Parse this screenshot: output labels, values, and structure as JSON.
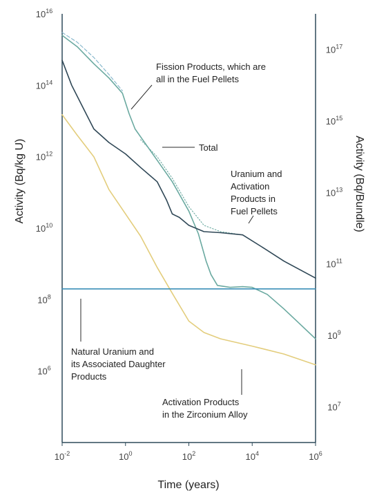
{
  "chart_data": {
    "type": "line",
    "xlabel": "Time (years)",
    "ylabel_left": "Activity (Bq/kg U)",
    "ylabel_right": "Activity (Bq/Bundle)",
    "xscale": "log",
    "yscale": "log",
    "xlim": [
      0.01,
      1000000
    ],
    "ylim_left": [
      10000,
      10000000000000000
    ],
    "ylim_right": [
      1000000,
      1000000000000000000
    ],
    "x_ticks": [
      {
        "value": 0.01,
        "base": "10",
        "exp": "-2"
      },
      {
        "value": 1,
        "base": "10",
        "exp": "0"
      },
      {
        "value": 100,
        "base": "10",
        "exp": "2"
      },
      {
        "value": 10000,
        "base": "10",
        "exp": "4"
      },
      {
        "value": 1000000,
        "base": "10",
        "exp": "6"
      }
    ],
    "y_left_ticks": [
      {
        "value": 1000000,
        "base": "10",
        "exp": "6"
      },
      {
        "value": 100000000,
        "base": "10",
        "exp": "8"
      },
      {
        "value": 10000000000,
        "base": "10",
        "exp": "10"
      },
      {
        "value": 1000000000000,
        "base": "10",
        "exp": "12"
      },
      {
        "value": 100000000000000,
        "base": "10",
        "exp": "14"
      },
      {
        "value": 10000000000000000,
        "base": "10",
        "exp": "16"
      }
    ],
    "y_right_ticks": [
      {
        "value": 10000000,
        "base": "10",
        "exp": "7"
      },
      {
        "value": 1000000000,
        "base": "10",
        "exp": "9"
      },
      {
        "value": 100000000000,
        "base": "10",
        "exp": "11"
      },
      {
        "value": 10000000000000,
        "base": "10",
        "exp": "13"
      },
      {
        "value": 1000000000000000,
        "base": "10",
        "exp": "15"
      },
      {
        "value": 100000000000000000,
        "base": "10",
        "exp": "17"
      }
    ],
    "series": [
      {
        "name": "Fission Products, which are all in the Fuel Pellets",
        "color": "#6aa9a0",
        "style": "solid",
        "points": [
          [
            0.01,
            2500000000000000.0
          ],
          [
            0.03,
            1200000000000000.0
          ],
          [
            0.1,
            400000000000000.0
          ],
          [
            0.3,
            160000000000000.0
          ],
          [
            0.8,
            60000000000000.0
          ],
          [
            1.3,
            16000000000000.0
          ],
          [
            2,
            6000000000000.0
          ],
          [
            4,
            2500000000000.0
          ],
          [
            10,
            800000000000.0
          ],
          [
            30,
            200000000000.0
          ],
          [
            100,
            30000000000.0
          ],
          [
            200,
            7000000000.0
          ],
          [
            350,
            1200000000.0
          ],
          [
            500,
            500000000.0
          ],
          [
            800,
            250000000.0
          ],
          [
            2000,
            220000000.0
          ],
          [
            5000,
            230000000.0
          ],
          [
            10000,
            220000000.0
          ],
          [
            30000,
            140000000.0
          ],
          [
            100000,
            55000000.0
          ],
          [
            300000,
            22000000.0
          ],
          [
            1000000,
            8000000.0
          ]
        ]
      },
      {
        "name": "Total",
        "color": "#6aa9a0",
        "style": "dotted",
        "points": [
          [
            3,
            3000000000000.0
          ],
          [
            10,
            1000000000000.0
          ],
          [
            30,
            250000000000.0
          ],
          [
            100,
            40000000000.0
          ],
          [
            300,
            12000000000.0
          ],
          [
            1000,
            8000000000.0
          ],
          [
            5000,
            6500000000.0
          ],
          [
            20000,
            3000000000.0
          ],
          [
            100000,
            1200000000.0
          ],
          [
            1000000,
            400000000.0
          ]
        ]
      },
      {
        "name": "Fission Products, which are all in the Fuel Pellets (upper envelope)",
        "color": "#7fb3c9",
        "style": "dashed",
        "points": [
          [
            0.01,
            3000000000000000.0
          ],
          [
            0.03,
            1600000000000000.0
          ],
          [
            0.1,
            600000000000000.0
          ],
          [
            0.3,
            200000000000000.0
          ],
          [
            0.8,
            70000000000000.0
          ]
        ]
      },
      {
        "name": "Uranium and Activation Products in Fuel Pellets",
        "color": "#2f4756",
        "style": "solid",
        "points": [
          [
            0.01,
            500000000000000.0
          ],
          [
            0.02,
            100000000000000.0
          ],
          [
            0.05,
            20000000000000.0
          ],
          [
            0.1,
            6000000000000.0
          ],
          [
            0.3,
            2500000000000.0
          ],
          [
            1,
            1200000000000.0
          ],
          [
            3,
            500000000000.0
          ],
          [
            10,
            200000000000.0
          ],
          [
            20,
            60000000000.0
          ],
          [
            30,
            25000000000.0
          ],
          [
            50,
            20000000000.0
          ],
          [
            100,
            12000000000.0
          ],
          [
            300,
            8000000000.0
          ],
          [
            1000,
            7500000000.0
          ],
          [
            5000,
            6500000000.0
          ],
          [
            20000,
            3000000000.0
          ],
          [
            100000,
            1200000000.0
          ],
          [
            1000000,
            400000000.0
          ]
        ]
      },
      {
        "name": "Activation Products in the Zirconium Alloy",
        "color": "#e3cd7c",
        "style": "solid",
        "points": [
          [
            0.01,
            15000000000000.0
          ],
          [
            0.03,
            4000000000000.0
          ],
          [
            0.1,
            1000000000000.0
          ],
          [
            0.3,
            120000000000.0
          ],
          [
            1,
            25000000000.0
          ],
          [
            3,
            6000000000.0
          ],
          [
            10,
            800000000.0
          ],
          [
            30,
            150000000.0
          ],
          [
            100,
            25000000.0
          ],
          [
            300,
            12000000.0
          ],
          [
            1000,
            8000000.0
          ],
          [
            10000,
            5000000.0
          ],
          [
            100000,
            3000000.0
          ],
          [
            1000000,
            1500000.0
          ]
        ]
      },
      {
        "name": "Natural Uranium and its Associated Daughter Products",
        "color": "#3a8fb7",
        "style": "solid",
        "points": [
          [
            0.01,
            200000000.0
          ],
          [
            1000000,
            200000000.0
          ]
        ]
      }
    ],
    "annotations": [
      {
        "lines": [
          "Fission Products, which are",
          "all in the Fuel Pellets"
        ]
      },
      {
        "lines": [
          "Total"
        ]
      },
      {
        "lines": [
          "Uranium and",
          "Activation",
          "Products in",
          "Fuel Pellets"
        ]
      },
      {
        "lines": [
          "Natural Uranium and",
          "its Associated Daughter",
          "Products"
        ]
      },
      {
        "lines": [
          "Activation Products",
          "in the Zirconium Alloy"
        ]
      }
    ],
    "grid": false,
    "legend": "none"
  }
}
